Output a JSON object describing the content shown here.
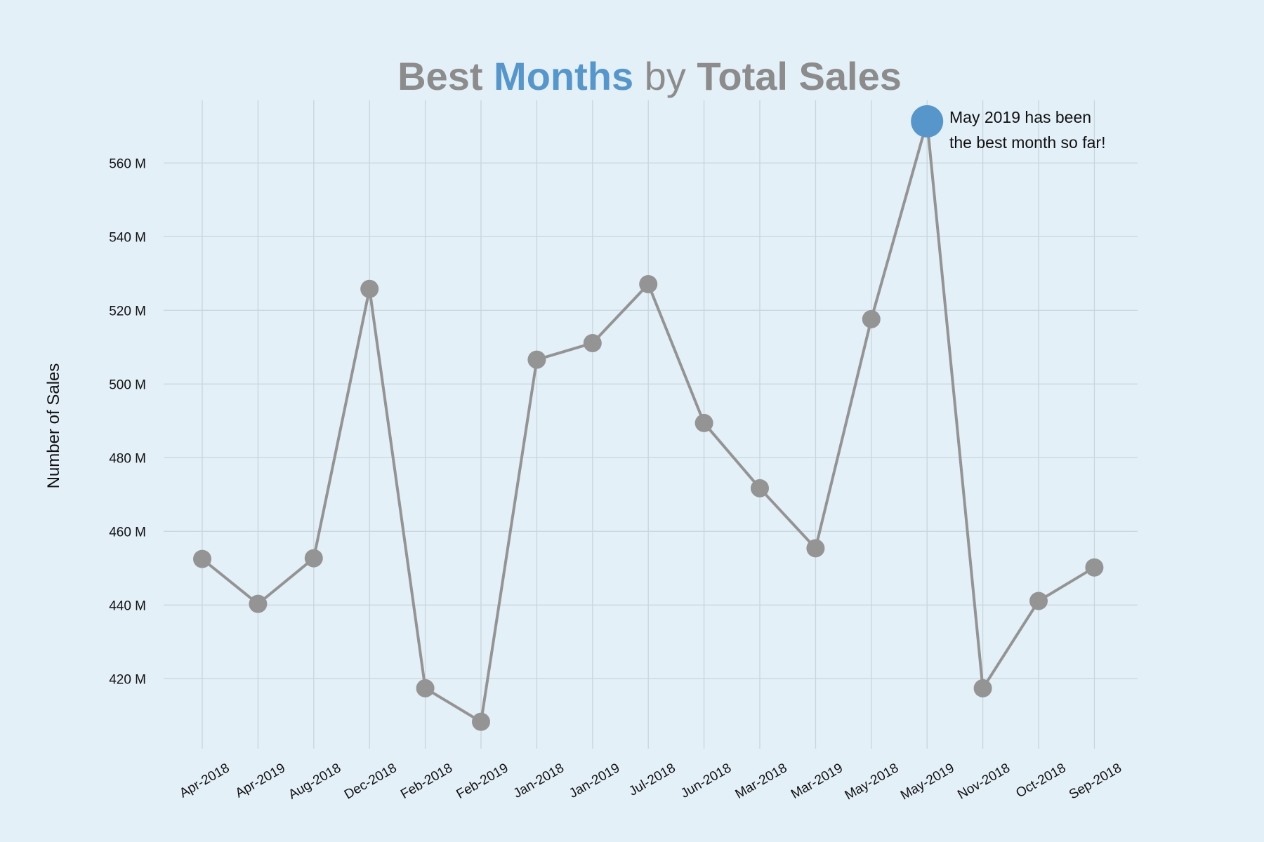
{
  "chart_data": {
    "type": "line",
    "title": {
      "part1": "Best ",
      "part2": "Months",
      "part3": " by ",
      "part4": "Total Sales"
    },
    "xlabel": "",
    "ylabel": "Number of Sales",
    "categories": [
      "Apr-2018",
      "Apr-2019",
      "Aug-2018",
      "Dec-2018",
      "Feb-2018",
      "Feb-2019",
      "Jan-2018",
      "Jan-2019",
      "Jul-2018",
      "Jun-2018",
      "Mar-2018",
      "Mar-2019",
      "May-2018",
      "May-2019",
      "Nov-2018",
      "Oct-2018",
      "Sep-2018"
    ],
    "series": [
      {
        "values": [
          452.5,
          440.3,
          452.7,
          525.8,
          417.4,
          408.3,
          506.6,
          511.1,
          527.1,
          489.4,
          471.7,
          455.4,
          517.6,
          571.3,
          417.4,
          441.1,
          450.2
        ]
      }
    ],
    "y_unit_suffix": " M",
    "yticks": [
      420,
      440,
      460,
      480,
      500,
      520,
      540,
      560
    ],
    "ylim": [
      401,
      577
    ],
    "grid": true,
    "highlight_index": 13,
    "annotation": {
      "line1": "May 2019 has been",
      "line2": "the best month so far!"
    },
    "colors": {
      "background": "#e4f0f7",
      "line": "#949494",
      "marker": "#949494",
      "highlight": "#5696cb",
      "title_gray": "#8c8c8c",
      "title_accent": "#5696cb",
      "grid": "#c9d5dd"
    }
  }
}
